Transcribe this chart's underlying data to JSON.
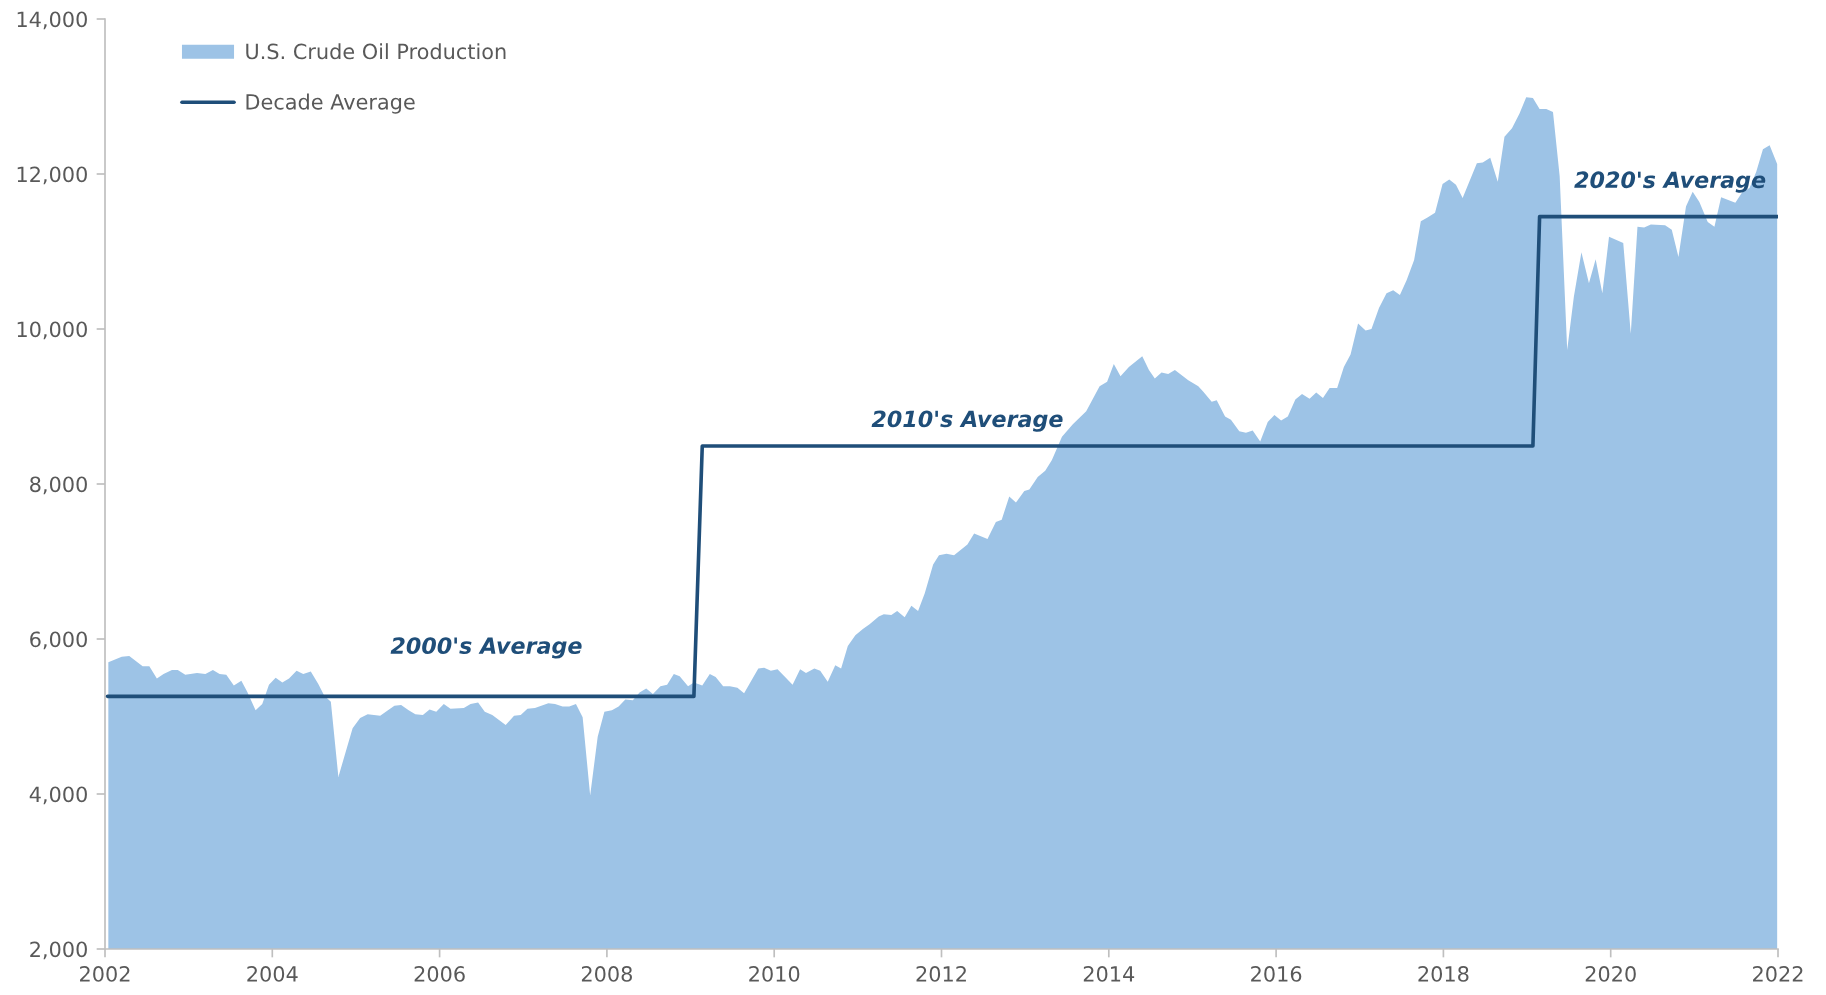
{
  "chart_data": {
    "type": "area",
    "xlim": [
      2002,
      2022
    ],
    "xticks": [
      2002,
      2004,
      2006,
      2008,
      2010,
      2012,
      2014,
      2016,
      2018,
      2020,
      2022
    ],
    "ylim": [
      2000,
      14000
    ],
    "yticks": [
      {
        "value": 2000,
        "label": "2,000"
      },
      {
        "value": 4000,
        "label": "4,000"
      },
      {
        "value": 6000,
        "label": "6,000"
      },
      {
        "value": 8000,
        "label": "8,000"
      },
      {
        "value": 10000,
        "label": "10,000"
      },
      {
        "value": 12000,
        "label": "12,000"
      },
      {
        "value": 14000,
        "label": "14,000"
      }
    ],
    "grid": false,
    "legend": "top left",
    "series": [
      {
        "name": "U.S. Crude Oil Production",
        "color": "#9dc3e6",
        "x": [
          2002.04,
          2002.2,
          2002.29,
          2002.45,
          2002.53,
          2002.62,
          2002.7,
          2002.8,
          2002.87,
          2002.96,
          2003.1,
          2003.2,
          2003.29,
          2003.37,
          2003.45,
          2003.54,
          2003.63,
          2003.7,
          2003.8,
          2003.88,
          2003.96,
          2004.04,
          2004.12,
          2004.2,
          2004.29,
          2004.37,
          2004.46,
          2004.55,
          2004.62,
          2004.7,
          2004.79,
          2004.96,
          2005.05,
          2005.14,
          2005.29,
          2005.37,
          2005.46,
          2005.54,
          2005.63,
          2005.71,
          2005.8,
          2005.88,
          2005.96,
          2006.05,
          2006.13,
          2006.29,
          2006.37,
          2006.46,
          2006.54,
          2006.63,
          2006.79,
          2006.89,
          2006.97,
          2007.05,
          2007.14,
          2007.3,
          2007.38,
          2007.47,
          2007.55,
          2007.63,
          2007.71,
          2007.8,
          2007.89,
          2007.97,
          2008.06,
          2008.14,
          2008.22,
          2008.31,
          2008.39,
          2008.47,
          2008.55,
          2008.64,
          2008.72,
          2008.8,
          2008.87,
          2008.97,
          2009.04,
          2009.14,
          2009.23,
          2009.3,
          2009.39,
          2009.47,
          2009.56,
          2009.64,
          2009.81,
          2009.88,
          2009.96,
          2010.04,
          2010.22,
          2010.31,
          2010.38,
          2010.48,
          2010.55,
          2010.64,
          2010.73,
          2010.8,
          2010.88,
          2010.97,
          2011.06,
          2011.14,
          2011.25,
          2011.31,
          2011.4,
          2011.47,
          2011.56,
          2011.64,
          2011.72,
          2011.8,
          2011.9,
          2011.97,
          2012.06,
          2012.15,
          2012.31,
          2012.39,
          2012.55,
          2012.65,
          2012.72,
          2012.81,
          2012.89,
          2012.99,
          2013.05,
          2013.15,
          2013.24,
          2013.32,
          2013.44,
          2013.57,
          2013.73,
          2013.89,
          2013.98,
          2014.06,
          2014.14,
          2014.24,
          2014.4,
          2014.48,
          2014.55,
          2014.63,
          2014.71,
          2014.79,
          2014.95,
          2015.07,
          2015.13,
          2015.23,
          2015.29,
          2015.39,
          2015.46,
          2015.56,
          2015.64,
          2015.72,
          2015.81,
          2015.9,
          2015.98,
          2016.06,
          2016.14,
          2016.23,
          2016.31,
          2016.4,
          2016.48,
          2016.56,
          2016.64,
          2016.73,
          2016.81,
          2016.89,
          2016.98,
          2017.07,
          2017.14,
          2017.23,
          2017.32,
          2017.4,
          2017.48,
          2017.56,
          2017.65,
          2017.73,
          2017.81,
          2017.9,
          2017.99,
          2018.07,
          2018.15,
          2018.23,
          2018.4,
          2018.47,
          2018.56,
          2018.65,
          2018.73,
          2018.82,
          2018.91,
          2018.99,
          2019.07,
          2019.15,
          2019.23,
          2019.31,
          2019.39,
          2019.48,
          2019.56,
          2019.65,
          2019.74,
          2019.82,
          2019.9,
          2019.98,
          2020.15,
          2020.24,
          2020.32,
          2020.4,
          2020.48,
          2020.65,
          2020.73,
          2020.81,
          2020.9,
          2020.98,
          2021.06,
          2021.16,
          2021.24,
          2021.32,
          2021.49,
          2021.57,
          2021.66,
          2021.74,
          2021.82,
          2021.9,
          2021.99
        ],
        "values": [
          5700,
          5770,
          5780,
          5650,
          5650,
          5490,
          5550,
          5600,
          5600,
          5540,
          5560,
          5550,
          5600,
          5550,
          5540,
          5400,
          5460,
          5320,
          5080,
          5160,
          5410,
          5500,
          5440,
          5490,
          5590,
          5550,
          5580,
          5420,
          5270,
          5190,
          4220,
          4850,
          4980,
          5030,
          5010,
          5070,
          5140,
          5150,
          5080,
          5030,
          5020,
          5090,
          5060,
          5160,
          5100,
          5110,
          5160,
          5180,
          5060,
          5020,
          4890,
          5010,
          5020,
          5100,
          5110,
          5170,
          5160,
          5130,
          5130,
          5160,
          4990,
          3980,
          4740,
          5060,
          5080,
          5130,
          5220,
          5210,
          5310,
          5360,
          5290,
          5390,
          5410,
          5550,
          5520,
          5390,
          5440,
          5400,
          5550,
          5510,
          5390,
          5390,
          5370,
          5300,
          5620,
          5630,
          5590,
          5610,
          5410,
          5610,
          5560,
          5620,
          5590,
          5450,
          5660,
          5620,
          5910,
          6050,
          6130,
          6190,
          6290,
          6320,
          6310,
          6360,
          6280,
          6430,
          6360,
          6590,
          6960,
          7080,
          7100,
          7080,
          7220,
          7360,
          7290,
          7510,
          7540,
          7840,
          7760,
          7910,
          7930,
          8090,
          8170,
          8310,
          8610,
          8770,
          8940,
          9260,
          9320,
          9550,
          9390,
          9510,
          9650,
          9470,
          9360,
          9440,
          9420,
          9470,
          9340,
          9260,
          9190,
          9060,
          9080,
          8870,
          8830,
          8680,
          8660,
          8690,
          8550,
          8800,
          8890,
          8820,
          8870,
          9090,
          9160,
          9100,
          9180,
          9110,
          9240,
          9240,
          9510,
          9670,
          10070,
          9980,
          10000,
          10270,
          10460,
          10500,
          10440,
          10630,
          10890,
          11390,
          11440,
          11500,
          11870,
          11930,
          11860,
          11690,
          12140,
          12150,
          12210,
          11900,
          12480,
          12590,
          12780,
          12990,
          12980,
          12840,
          12840,
          12800,
          11970,
          9730,
          10420,
          10990,
          10590,
          10900,
          10460,
          11190,
          11110,
          9940,
          11320,
          11310,
          11350,
          11340,
          11280,
          10930,
          11580,
          11770,
          11640,
          11380,
          11320,
          11700,
          11630,
          11760,
          11820,
          12030,
          12320,
          12370,
          12130
        ]
      },
      {
        "name": "Decade Average",
        "type": "line",
        "color": "#1f4e79",
        "line_style": "solid",
        "x": [
          2002.03,
          2009.04,
          2009.14,
          2019.07,
          2019.15,
          2022
        ],
        "values": [
          5260,
          5260,
          8490,
          8490,
          11450,
          11450
        ]
      }
    ],
    "annotations": [
      {
        "text": "2000's Average",
        "x": 2006.56,
        "y": 5260
      },
      {
        "text": "2010's Average",
        "x": 2012.31,
        "y": 8490
      },
      {
        "text": "2020's Average",
        "x": 2020.71,
        "y": 11450
      }
    ]
  }
}
